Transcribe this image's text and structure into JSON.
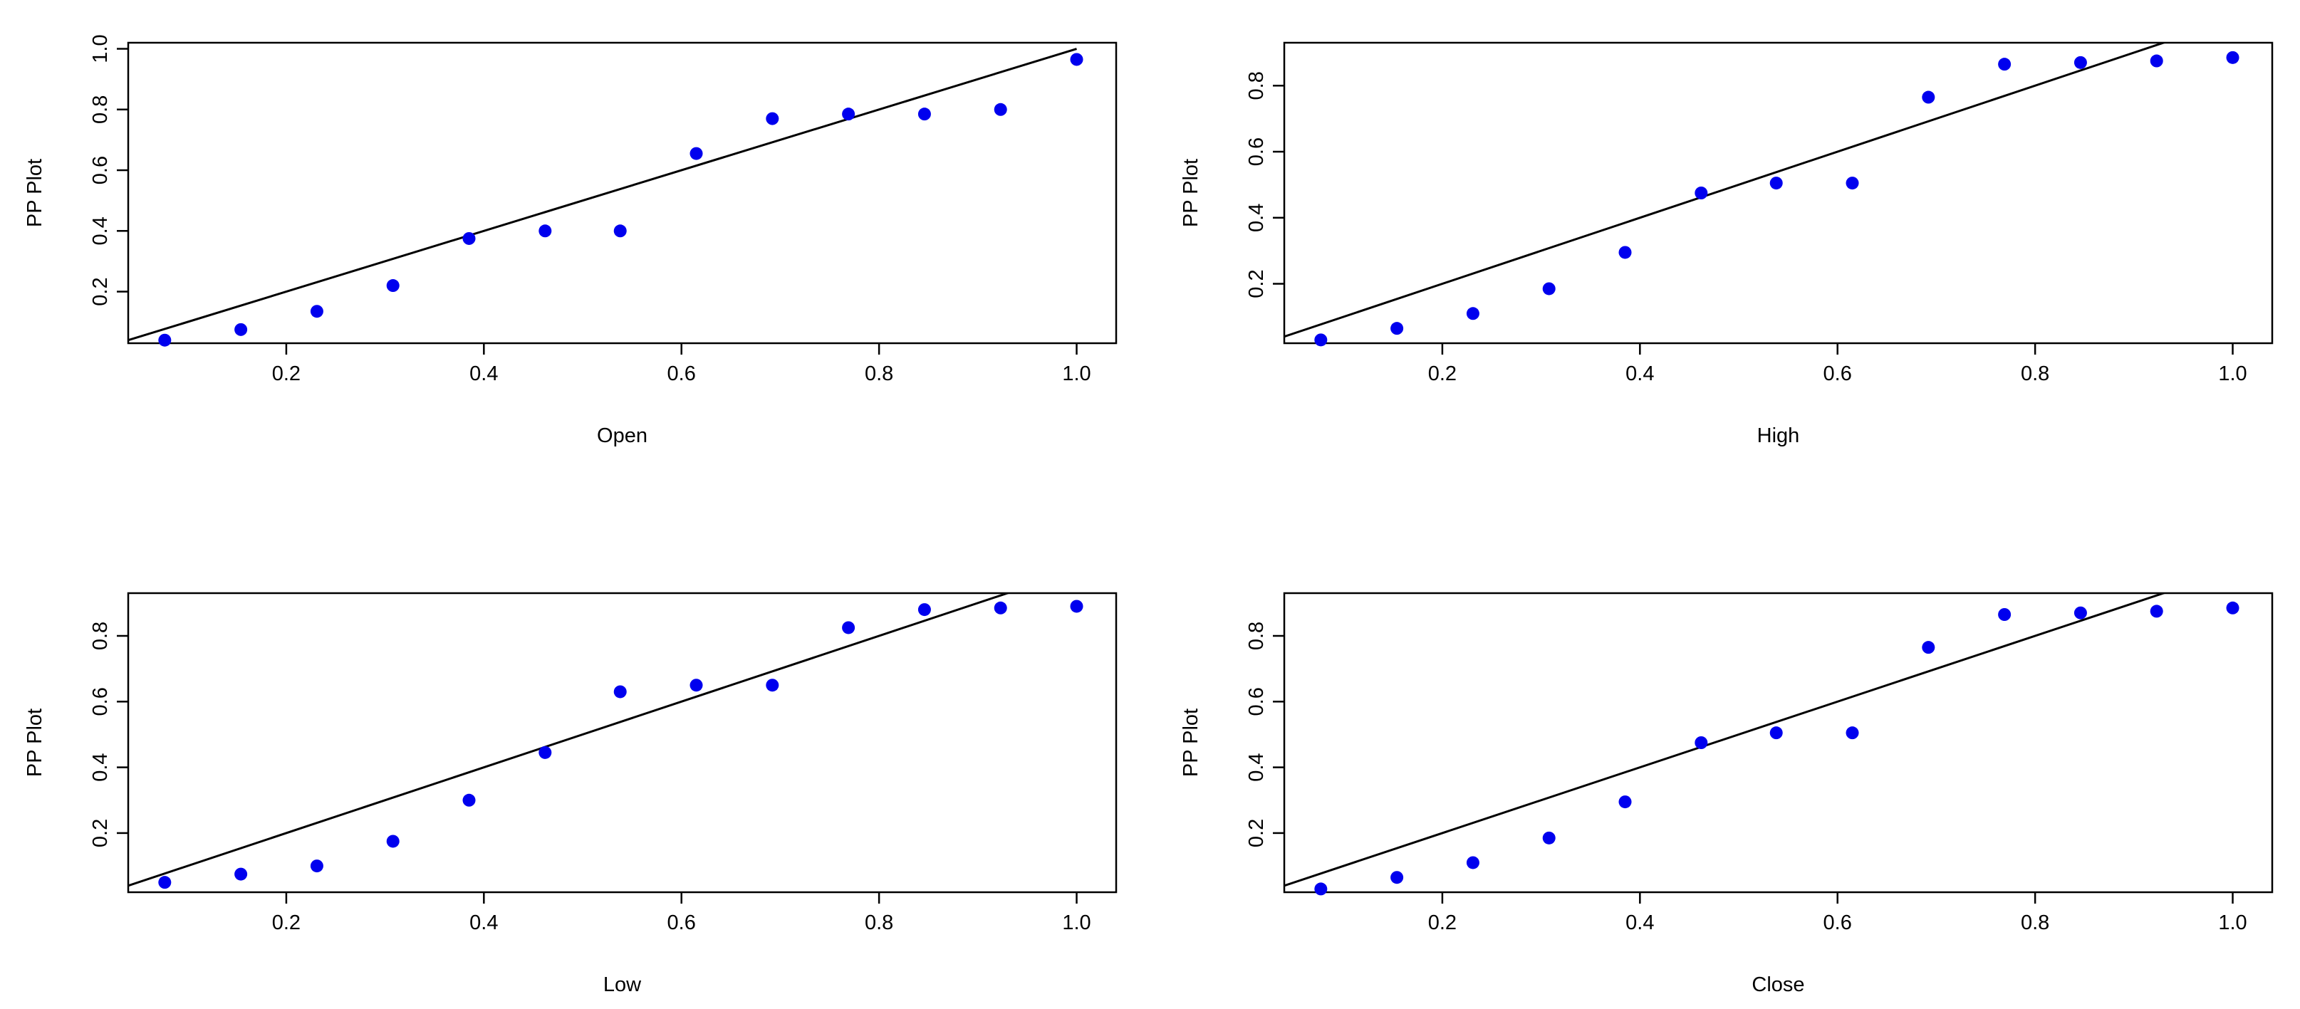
{
  "chart_data": [
    {
      "type": "scatter",
      "xlabel": "Open",
      "ylabel": "PP Plot",
      "xlim": [
        0.04,
        1.04
      ],
      "ylim": [
        0.03,
        1.02
      ],
      "xticks": [
        "0.2",
        "0.4",
        "0.6",
        "0.8",
        "1.0"
      ],
      "yticks": [
        "0.2",
        "0.4",
        "0.6",
        "0.8",
        "1.0"
      ],
      "x": [
        0.077,
        0.154,
        0.231,
        0.308,
        0.385,
        0.462,
        0.538,
        0.615,
        0.692,
        0.769,
        0.846,
        0.923,
        1.0
      ],
      "y": [
        0.04,
        0.075,
        0.135,
        0.22,
        0.375,
        0.4,
        0.4,
        0.655,
        0.77,
        0.785,
        0.785,
        0.8,
        0.965
      ],
      "reference_line": [
        [
          0.0,
          0.0
        ],
        [
          1.0,
          1.0
        ]
      ],
      "grid": false
    },
    {
      "type": "scatter",
      "xlabel": "High",
      "ylabel": "PP Plot",
      "xlim": [
        0.04,
        1.04
      ],
      "ylim": [
        0.02,
        0.93
      ],
      "xticks": [
        "0.2",
        "0.4",
        "0.6",
        "0.8",
        "1.0"
      ],
      "yticks": [
        "0.2",
        "0.4",
        "0.6",
        "0.8"
      ],
      "x": [
        0.077,
        0.154,
        0.231,
        0.308,
        0.385,
        0.462,
        0.538,
        0.615,
        0.692,
        0.769,
        0.846,
        0.923,
        1.0
      ],
      "y": [
        0.03,
        0.065,
        0.11,
        0.185,
        0.295,
        0.475,
        0.505,
        0.505,
        0.765,
        0.865,
        0.87,
        0.875,
        0.885
      ],
      "reference_line": [
        [
          0.0,
          0.0
        ],
        [
          1.0,
          1.0
        ]
      ],
      "grid": false
    },
    {
      "type": "scatter",
      "xlabel": "Low",
      "ylabel": "PP Plot",
      "xlim": [
        0.04,
        1.04
      ],
      "ylim": [
        0.02,
        0.93
      ],
      "xticks": [
        "0.2",
        "0.4",
        "0.6",
        "0.8",
        "1.0"
      ],
      "yticks": [
        "0.2",
        "0.4",
        "0.6",
        "0.8"
      ],
      "x": [
        0.077,
        0.154,
        0.231,
        0.308,
        0.385,
        0.462,
        0.538,
        0.615,
        0.692,
        0.769,
        0.846,
        0.923,
        1.0
      ],
      "y": [
        0.05,
        0.075,
        0.1,
        0.175,
        0.3,
        0.445,
        0.63,
        0.65,
        0.65,
        0.825,
        0.88,
        0.885,
        0.89
      ],
      "reference_line": [
        [
          0.0,
          0.0
        ],
        [
          1.0,
          1.0
        ]
      ],
      "grid": false
    },
    {
      "type": "scatter",
      "xlabel": "Close",
      "ylabel": "PP Plot",
      "xlim": [
        0.04,
        1.04
      ],
      "ylim": [
        0.02,
        0.93
      ],
      "xticks": [
        "0.2",
        "0.4",
        "0.6",
        "0.8",
        "1.0"
      ],
      "yticks": [
        "0.2",
        "0.4",
        "0.6",
        "0.8"
      ],
      "x": [
        0.077,
        0.154,
        0.231,
        0.308,
        0.385,
        0.462,
        0.538,
        0.615,
        0.692,
        0.769,
        0.846,
        0.923,
        1.0
      ],
      "y": [
        0.03,
        0.065,
        0.11,
        0.185,
        0.295,
        0.475,
        0.505,
        0.505,
        0.765,
        0.865,
        0.87,
        0.875,
        0.885
      ],
      "reference_line": [
        [
          0.0,
          0.0
        ],
        [
          1.0,
          1.0
        ]
      ],
      "grid": false
    }
  ],
  "colors": {
    "points": "#0000ee",
    "line": "#000000",
    "axes": "#000000",
    "background": "#ffffff"
  }
}
